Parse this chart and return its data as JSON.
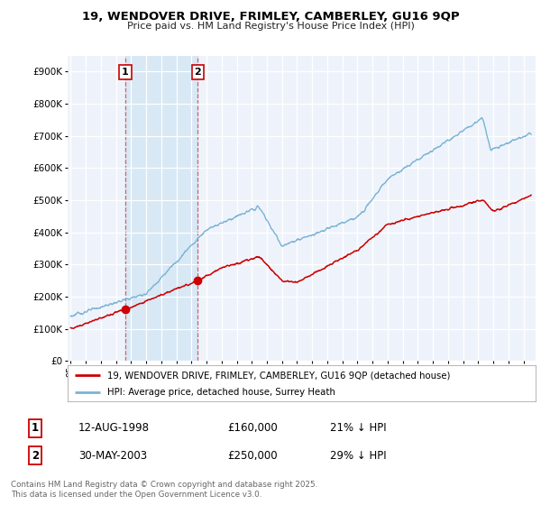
{
  "title_line1": "19, WENDOVER DRIVE, FRIMLEY, CAMBERLEY, GU16 9QP",
  "title_line2": "Price paid vs. HM Land Registry's House Price Index (HPI)",
  "ylim": [
    0,
    950000
  ],
  "yticks": [
    0,
    100000,
    200000,
    300000,
    400000,
    500000,
    600000,
    700000,
    800000,
    900000
  ],
  "ytick_labels": [
    "£0",
    "£100K",
    "£200K",
    "£300K",
    "£400K",
    "£500K",
    "£600K",
    "£700K",
    "£800K",
    "£900K"
  ],
  "hpi_color": "#7ab3d4",
  "price_color": "#cc0000",
  "marker_color": "#cc0000",
  "sale1_date_num": 1998.614,
  "sale1_price": 160000,
  "sale1_label": "1",
  "sale2_date_num": 2003.413,
  "sale2_price": 250000,
  "sale2_label": "2",
  "legend_entry1": "19, WENDOVER DRIVE, FRIMLEY, CAMBERLEY, GU16 9QP (detached house)",
  "legend_entry2": "HPI: Average price, detached house, Surrey Heath",
  "table_row1": [
    "1",
    "12-AUG-1998",
    "£160,000",
    "21% ↓ HPI"
  ],
  "table_row2": [
    "2",
    "30-MAY-2003",
    "£250,000",
    "29% ↓ HPI"
  ],
  "footnote": "Contains HM Land Registry data © Crown copyright and database right 2025.\nThis data is licensed under the Open Government Licence v3.0.",
  "bg_color": "#ffffff",
  "plot_bg_color": "#eef3fb",
  "shade_color": "#d8e8f5",
  "grid_color": "#ffffff",
  "dashed_color": "#cc6666",
  "shade_x1": 1998.614,
  "shade_x2": 2003.413,
  "xlim_left": 1994.8,
  "xlim_right": 2025.8
}
